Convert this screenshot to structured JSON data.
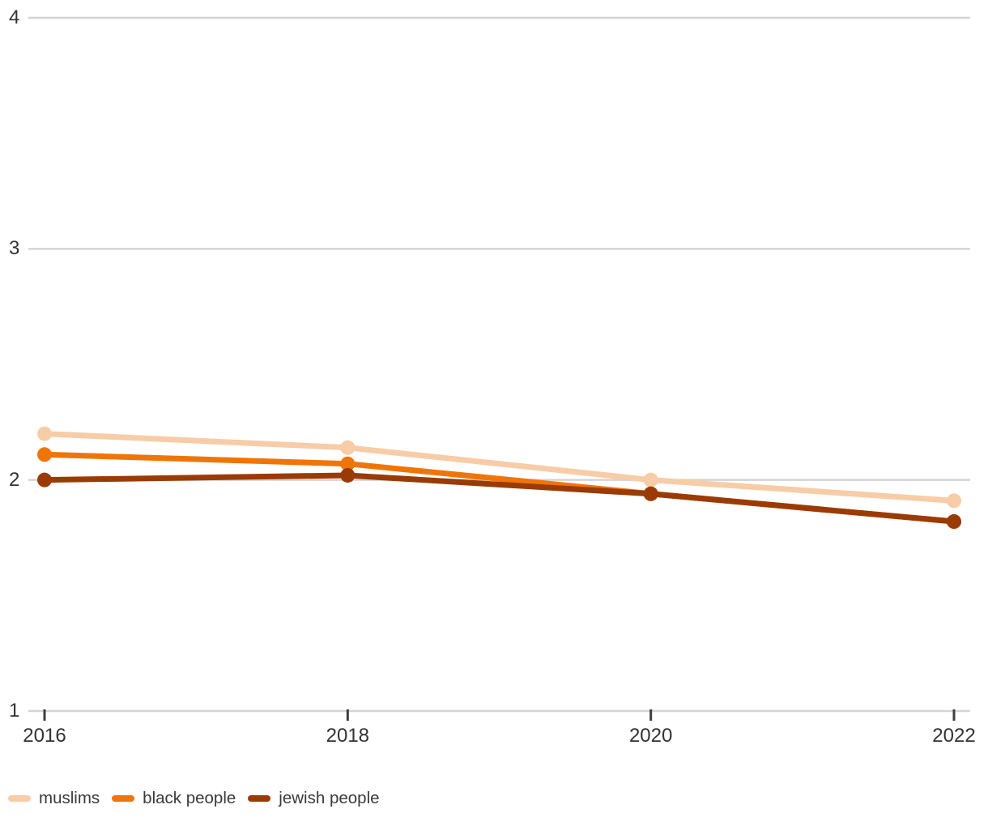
{
  "chart_data": {
    "type": "line",
    "x": [
      2016,
      2018,
      2020,
      2022
    ],
    "series": [
      {
        "name": "muslims",
        "color": "#F8CCA6",
        "values": [
          2.2,
          2.14,
          2.0,
          1.91
        ]
      },
      {
        "name": "black people",
        "color": "#EF7509",
        "values": [
          2.11,
          2.07,
          1.94,
          1.82
        ]
      },
      {
        "name": "jewish people",
        "color": "#9A3B05",
        "values": [
          2.0,
          2.02,
          1.94,
          1.82
        ]
      }
    ],
    "yticks": [
      4,
      3,
      2,
      1
    ],
    "ylim": [
      1,
      4
    ],
    "xlim": [
      2016,
      2022
    ],
    "grid": "horizontal-only",
    "legend_position": "bottom-left",
    "marker": "circle"
  },
  "colors": {
    "background": "#ffffff",
    "gridline": "#d4d4d4",
    "axis_line": "#d4d4d4",
    "tick_mark": "#3f3f3f",
    "tick_text": "#333333",
    "legend_text": "#3a3a3a"
  }
}
